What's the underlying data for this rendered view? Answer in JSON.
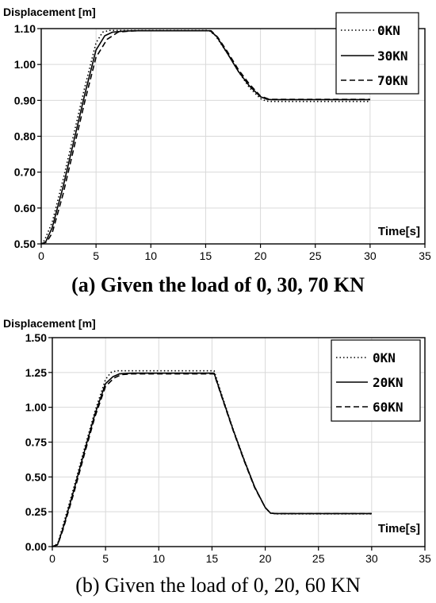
{
  "chart_data": [
    {
      "type": "line",
      "ylabel": "Displacement [m]",
      "xlabel": "Time[s]",
      "caption": "(a) Given the load of 0, 30, 70 KN",
      "xlim": [
        0,
        35
      ],
      "ylim": [
        0.5,
        1.1
      ],
      "xticks": [
        "0",
        "5",
        "10",
        "15",
        "20",
        "25",
        "30",
        "35"
      ],
      "yticks": [
        "0.50",
        "0.60",
        "0.70",
        "0.80",
        "0.90",
        "1.00",
        "1.10"
      ],
      "xtick_values": [
        0,
        5,
        10,
        15,
        20,
        25,
        30,
        35
      ],
      "ytick_values": [
        0.5,
        0.6,
        0.7,
        0.8,
        0.9,
        1.0,
        1.1
      ],
      "grid": true,
      "legend_position": "top-right",
      "series": [
        {
          "name": "0KN",
          "dash": "dotted",
          "x": [
            0,
            0.3,
            1,
            2,
            3,
            4,
            5,
            5.6,
            6.2,
            7,
            8,
            9,
            15.3,
            15.9,
            17,
            18,
            19,
            20,
            20.5,
            21,
            22,
            30
          ],
          "y": [
            0.5,
            0.51,
            0.56,
            0.68,
            0.81,
            0.94,
            1.06,
            1.09,
            1.095,
            1.095,
            1.095,
            1.095,
            1.095,
            1.08,
            1.03,
            0.98,
            0.935,
            0.905,
            0.898,
            0.897,
            0.897,
            0.897
          ]
        },
        {
          "name": "30KN",
          "dash": "solid",
          "x": [
            0,
            0.4,
            1,
            2,
            3,
            4,
            5,
            5.8,
            6.5,
            7.5,
            8.5,
            9.5,
            15.4,
            16,
            17,
            18,
            19,
            20,
            20.6,
            21,
            22,
            30
          ],
          "y": [
            0.5,
            0.505,
            0.545,
            0.66,
            0.79,
            0.92,
            1.04,
            1.08,
            1.09,
            1.093,
            1.094,
            1.094,
            1.094,
            1.078,
            1.03,
            0.98,
            0.94,
            0.91,
            0.903,
            0.902,
            0.902,
            0.902
          ]
        },
        {
          "name": "70KN",
          "dash": "dashed",
          "x": [
            0,
            0.5,
            1,
            2,
            3,
            4,
            5,
            6,
            7,
            8,
            9,
            10,
            15.5,
            16.1,
            17,
            18,
            19,
            20,
            20.7,
            21,
            22,
            30
          ],
          "y": [
            0.5,
            0.505,
            0.53,
            0.64,
            0.77,
            0.9,
            1.02,
            1.07,
            1.09,
            1.093,
            1.094,
            1.094,
            1.094,
            1.076,
            1.035,
            0.985,
            0.945,
            0.912,
            0.904,
            0.903,
            0.903,
            0.903
          ]
        }
      ]
    },
    {
      "type": "line",
      "ylabel": "Displacement [m]",
      "xlabel": "Time[s]",
      "caption": "(b) Given the load of 0, 20, 60 KN",
      "xlim": [
        0,
        35
      ],
      "ylim": [
        0,
        1.5
      ],
      "xticks": [
        "0",
        "5",
        "10",
        "15",
        "20",
        "25",
        "30",
        "35"
      ],
      "yticks": [
        "0.00",
        "0.25",
        "0.50",
        "0.75",
        "1.00",
        "1.25",
        "1.50"
      ],
      "xtick_values": [
        0,
        5,
        10,
        15,
        20,
        25,
        30,
        35
      ],
      "ytick_values": [
        0,
        0.25,
        0.5,
        0.75,
        1.0,
        1.25,
        1.5
      ],
      "grid": true,
      "legend_position": "top-right",
      "series": [
        {
          "name": "0KN",
          "dash": "dotted",
          "x": [
            0,
            0.5,
            1,
            2,
            3,
            4,
            5,
            5.5,
            6,
            7,
            15.2,
            16,
            17,
            18,
            19,
            20,
            20.5,
            21,
            30
          ],
          "y": [
            0,
            0.02,
            0.15,
            0.42,
            0.7,
            0.97,
            1.2,
            1.25,
            1.262,
            1.262,
            1.262,
            1.07,
            0.84,
            0.63,
            0.43,
            0.28,
            0.24,
            0.235,
            0.235
          ]
        },
        {
          "name": "20KN",
          "dash": "solid",
          "x": [
            0,
            0.5,
            1,
            2,
            3,
            4,
            5,
            5.7,
            6.3,
            7.5,
            15.2,
            16,
            17,
            18,
            19,
            20,
            20.5,
            21,
            30
          ],
          "y": [
            0,
            0.015,
            0.13,
            0.4,
            0.68,
            0.95,
            1.17,
            1.22,
            1.24,
            1.245,
            1.245,
            1.06,
            0.835,
            0.625,
            0.43,
            0.28,
            0.24,
            0.237,
            0.237
          ]
        },
        {
          "name": "60KN",
          "dash": "dashed",
          "x": [
            0,
            0.5,
            1,
            2,
            3,
            4,
            5,
            5.8,
            6.5,
            7.5,
            15.2,
            16,
            17,
            18,
            19,
            20,
            20.5,
            21,
            30
          ],
          "y": [
            0,
            0.012,
            0.12,
            0.38,
            0.66,
            0.93,
            1.15,
            1.21,
            1.235,
            1.24,
            1.24,
            1.055,
            0.83,
            0.62,
            0.425,
            0.28,
            0.24,
            0.237,
            0.237
          ]
        }
      ]
    }
  ]
}
